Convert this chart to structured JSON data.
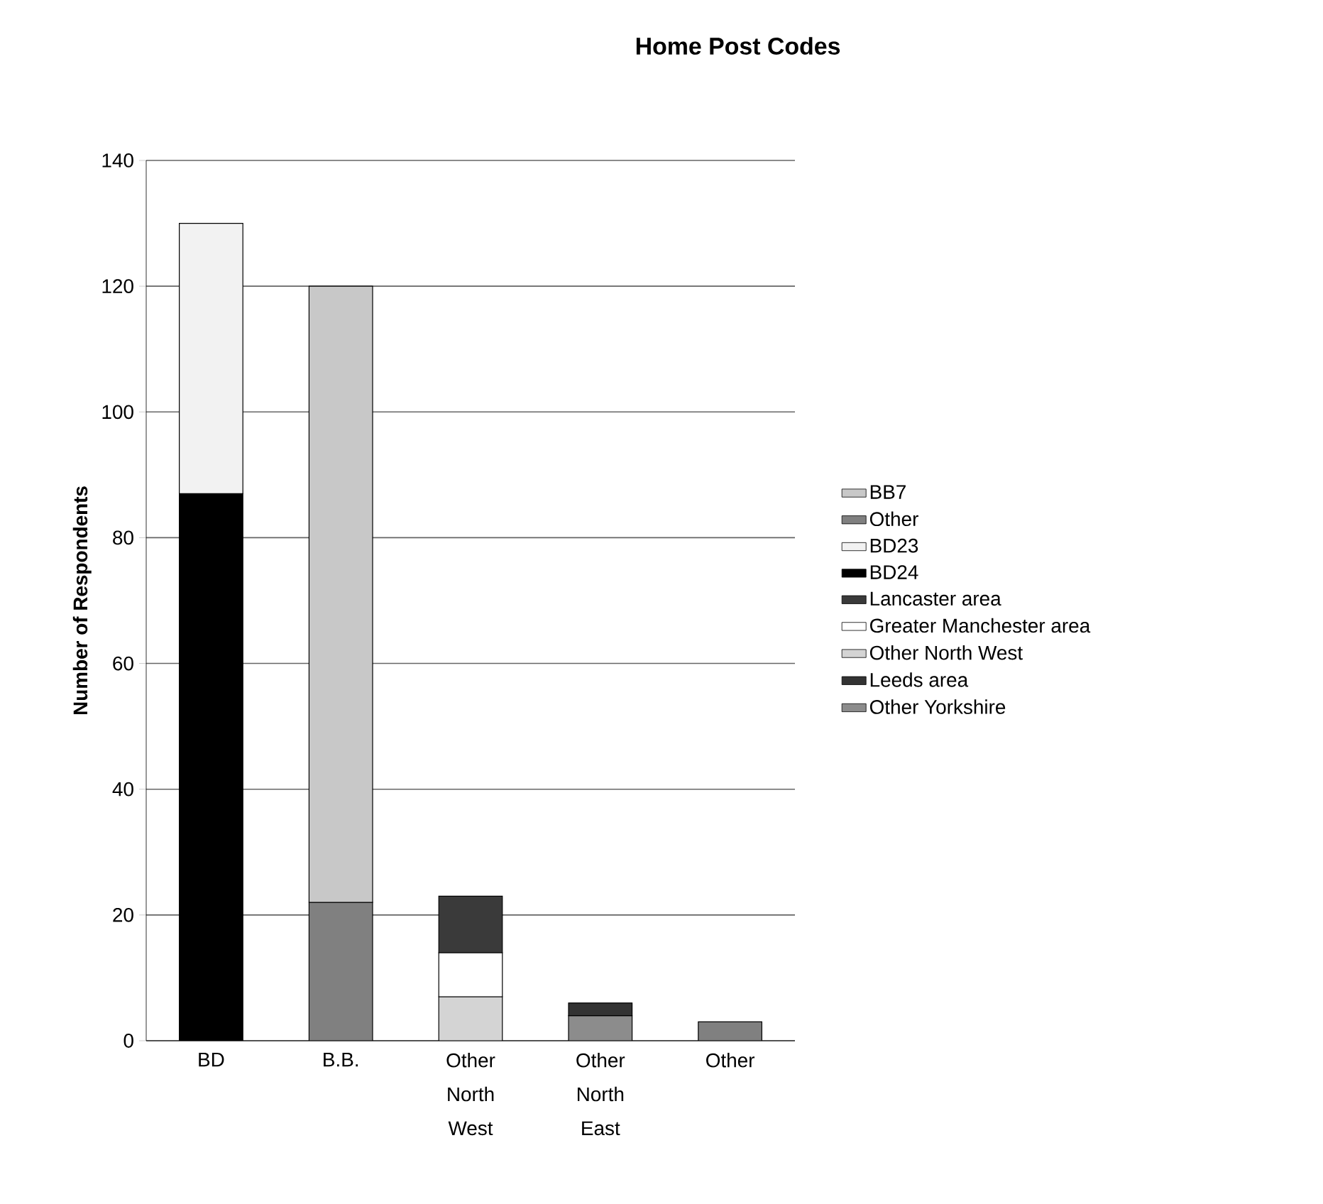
{
  "chart_data": {
    "type": "bar",
    "stacked": true,
    "title": "Home Post Codes",
    "ylabel": "Number of Respondents",
    "categories": [
      "BD",
      "B.B.",
      "Other North West",
      "Other North East",
      "Other"
    ],
    "series": [
      {
        "name": "Other Yorkshire",
        "color": "#8c8c8c",
        "values": [
          null,
          null,
          null,
          4,
          null
        ]
      },
      {
        "name": "Leeds area",
        "color": "#333333",
        "values": [
          null,
          null,
          null,
          2,
          null
        ]
      },
      {
        "name": "Other North West",
        "color": "#d4d4d4",
        "values": [
          null,
          null,
          7,
          null,
          null
        ]
      },
      {
        "name": "Greater Manchester area",
        "color": "#ffffff",
        "values": [
          null,
          null,
          7,
          null,
          null
        ]
      },
      {
        "name": "Lancaster area",
        "color": "#3a3a3a",
        "values": [
          null,
          null,
          9,
          null,
          null
        ]
      },
      {
        "name": "BD24",
        "color": "#000000",
        "values": [
          87,
          null,
          null,
          null,
          null
        ]
      },
      {
        "name": "BD23",
        "color": "#f2f2f2",
        "values": [
          43,
          null,
          null,
          null,
          null
        ]
      },
      {
        "name": "Other",
        "color": "#808080",
        "values": [
          null,
          22,
          null,
          null,
          3
        ]
      },
      {
        "name": "BB7",
        "color": "#c8c8c8",
        "values": [
          null,
          98,
          null,
          null,
          null
        ]
      }
    ],
    "ylim": [
      0,
      140
    ],
    "yticks": [
      0,
      20,
      40,
      60,
      80,
      100,
      120,
      140
    ],
    "grid": "y",
    "legend": "right"
  }
}
